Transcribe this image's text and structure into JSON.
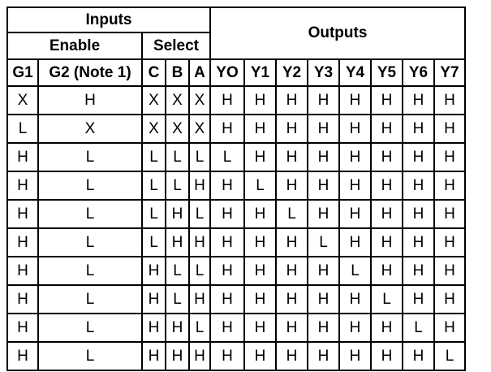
{
  "header": {
    "inputs": "Inputs",
    "enable": "Enable",
    "select": "Select",
    "outputs": "Outputs"
  },
  "columns": [
    "G1",
    "G2 (Note 1)",
    "C",
    "B",
    "A",
    "YO",
    "Y1",
    "Y2",
    "Y3",
    "Y4",
    "Y5",
    "Y6",
    "Y7"
  ],
  "rows": [
    [
      "X",
      "H",
      "X",
      "X",
      "X",
      "H",
      "H",
      "H",
      "H",
      "H",
      "H",
      "H",
      "H"
    ],
    [
      "L",
      "X",
      "X",
      "X",
      "X",
      "H",
      "H",
      "H",
      "H",
      "H",
      "H",
      "H",
      "H"
    ],
    [
      "H",
      "L",
      "L",
      "L",
      "L",
      "L",
      "H",
      "H",
      "H",
      "H",
      "H",
      "H",
      "H"
    ],
    [
      "H",
      "L",
      "L",
      "L",
      "H",
      "H",
      "L",
      "H",
      "H",
      "H",
      "H",
      "H",
      "H"
    ],
    [
      "H",
      "L",
      "L",
      "H",
      "L",
      "H",
      "H",
      "L",
      "H",
      "H",
      "H",
      "H",
      "H"
    ],
    [
      "H",
      "L",
      "L",
      "H",
      "H",
      "H",
      "H",
      "H",
      "L",
      "H",
      "H",
      "H",
      "H"
    ],
    [
      "H",
      "L",
      "H",
      "L",
      "L",
      "H",
      "H",
      "H",
      "H",
      "L",
      "H",
      "H",
      "H"
    ],
    [
      "H",
      "L",
      "H",
      "L",
      "H",
      "H",
      "H",
      "H",
      "H",
      "H",
      "L",
      "H",
      "H"
    ],
    [
      "H",
      "L",
      "H",
      "H",
      "L",
      "H",
      "H",
      "H",
      "H",
      "H",
      "H",
      "L",
      "H"
    ],
    [
      "H",
      "L",
      "H",
      "H",
      "H",
      "H",
      "H",
      "H",
      "H",
      "H",
      "H",
      "H",
      "L"
    ]
  ]
}
